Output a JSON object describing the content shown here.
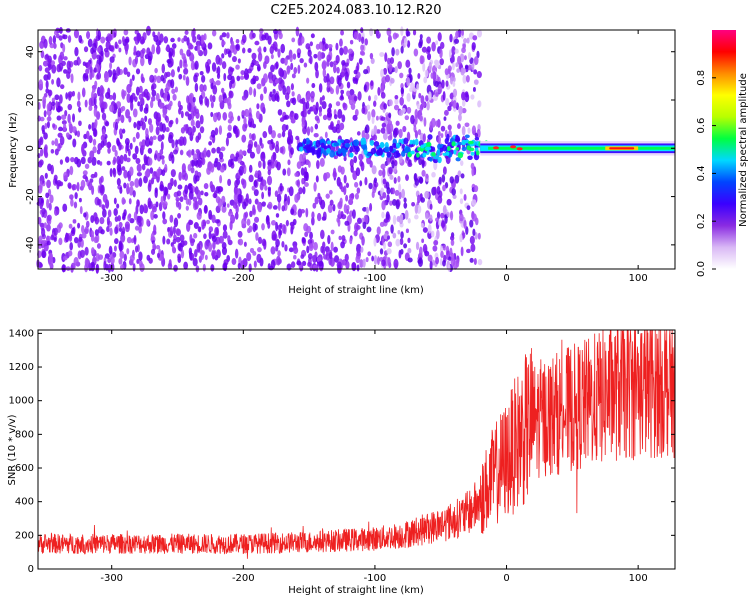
{
  "title": "C2E5.2024.083.10.12.R20",
  "chart_data": [
    {
      "type": "heatmap",
      "name": "spectrogram",
      "xlabel": "Height of straight line (km)",
      "ylabel": "Frequency (Hz)",
      "xlim": [
        -356,
        128
      ],
      "ylim": [
        -50,
        49
      ],
      "xticks": [
        -300,
        -200,
        -100,
        0,
        100
      ],
      "yticks": [
        -40,
        -20,
        0,
        20,
        40
      ],
      "colorbar": {
        "label": "Normalized spectral amplitude",
        "range": [
          0,
          1
        ],
        "ticks": [
          0.0,
          0.2,
          0.4,
          0.6,
          0.8
        ],
        "colormap": [
          "#ffffff",
          "#d9b8f5",
          "#8a2be2",
          "#3a00ff",
          "#0044ff",
          "#00d8ff",
          "#00ff40",
          "#b8ff00",
          "#ffff00",
          "#ff8c00",
          "#ff0000",
          "#ff0080"
        ]
      },
      "signal": {
        "center_frequency_hz": 0,
        "noise_band_x_range": [
          -356,
          -40
        ],
        "strong_line_x_range": [
          -20,
          128
        ],
        "peak_x_range": [
          75,
          100
        ]
      }
    },
    {
      "type": "line",
      "name": "snr",
      "xlabel": "Height of straight line (km)",
      "ylabel": "SNR (10 * v/v)",
      "xlim": [
        -356,
        128
      ],
      "ylim": [
        0,
        1420
      ],
      "xticks": [
        -300,
        -200,
        -100,
        0,
        100
      ],
      "yticks": [
        0,
        200,
        400,
        600,
        800,
        1000,
        1200,
        1400
      ],
      "color": "#ee2020",
      "profile": [
        {
          "x": -356,
          "y": 150
        },
        {
          "x": -300,
          "y": 150
        },
        {
          "x": -200,
          "y": 150
        },
        {
          "x": -150,
          "y": 160
        },
        {
          "x": -100,
          "y": 180
        },
        {
          "x": -80,
          "y": 200
        },
        {
          "x": -60,
          "y": 240
        },
        {
          "x": -40,
          "y": 290
        },
        {
          "x": -30,
          "y": 330
        },
        {
          "x": -20,
          "y": 400
        },
        {
          "x": -15,
          "y": 480
        },
        {
          "x": -10,
          "y": 550
        },
        {
          "x": 0,
          "y": 650
        },
        {
          "x": 10,
          "y": 780
        },
        {
          "x": 20,
          "y": 880
        },
        {
          "x": 40,
          "y": 930
        },
        {
          "x": 60,
          "y": 980
        },
        {
          "x": 80,
          "y": 1050
        },
        {
          "x": 100,
          "y": 1080
        },
        {
          "x": 128,
          "y": 1100
        }
      ]
    }
  ]
}
